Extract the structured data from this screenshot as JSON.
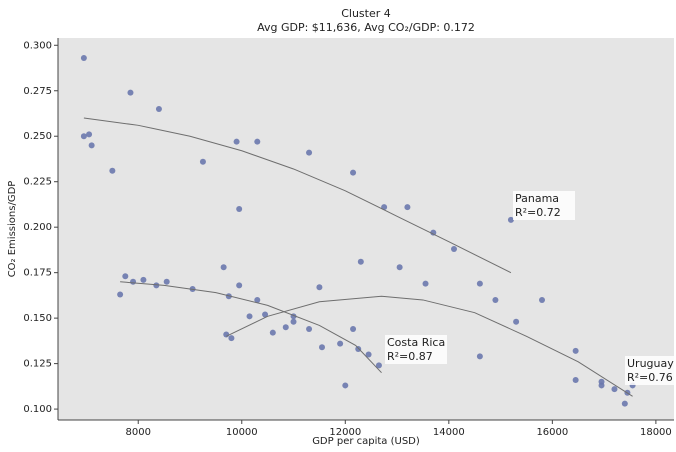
{
  "chart_data": {
    "type": "scatter",
    "title": "Cluster 4",
    "subtitle": "Avg GDP: $11,636, Avg CO₂/GDP: 0.172",
    "x_label": "GDP per capita (USD)",
    "y_label": "CO₂ Emissions/GDP",
    "xlim": [
      6450,
      18350
    ],
    "ylim": [
      0.094,
      0.304
    ],
    "xticks": [
      8000,
      10000,
      12000,
      14000,
      16000,
      18000
    ],
    "yticks": [
      {
        "value": 0.1,
        "label": "0.100"
      },
      {
        "value": 0.125,
        "label": "0.125"
      },
      {
        "value": 0.15,
        "label": "0.150"
      },
      {
        "value": 0.175,
        "label": "0.175"
      },
      {
        "value": 0.2,
        "label": "0.200"
      },
      {
        "value": 0.225,
        "label": "0.225"
      },
      {
        "value": 0.25,
        "label": "0.250"
      },
      {
        "value": 0.275,
        "label": "0.275"
      },
      {
        "value": 0.3,
        "label": "0.300"
      }
    ],
    "point_color": "#6a78ad",
    "line_color": "#6e6e6e",
    "background": "#e5e5e5",
    "points": {
      "x": [
        6950,
        6950,
        7050,
        7100,
        7500,
        7850,
        8400,
        9250,
        9900,
        10300,
        9950,
        11300,
        12150,
        12750,
        13200,
        13700,
        14100,
        15200,
        7650,
        7750,
        7900,
        8100,
        8350,
        8550,
        9050,
        9650,
        9750,
        9950,
        9700,
        9800,
        10150,
        10300,
        10450,
        10600,
        10850,
        11000,
        11000,
        11300,
        11500,
        11550,
        11900,
        12000,
        12150,
        12250,
        12300,
        12450,
        12650,
        13050,
        13550,
        14600,
        14600,
        14900,
        15300,
        15800,
        16450,
        16450,
        16950,
        16950,
        17200,
        17400,
        17450,
        17550
      ],
      "values": [
        0.293,
        0.25,
        0.251,
        0.245,
        0.231,
        0.274,
        0.265,
        0.236,
        0.247,
        0.247,
        0.21,
        0.241,
        0.23,
        0.211,
        0.211,
        0.197,
        0.188,
        0.204,
        0.163,
        0.173,
        0.17,
        0.171,
        0.168,
        0.17,
        0.166,
        0.178,
        0.162,
        0.168,
        0.141,
        0.139,
        0.151,
        0.16,
        0.152,
        0.142,
        0.145,
        0.151,
        0.148,
        0.144,
        0.167,
        0.134,
        0.136,
        0.113,
        0.144,
        0.133,
        0.181,
        0.13,
        0.124,
        0.178,
        0.169,
        0.169,
        0.129,
        0.16,
        0.148,
        0.16,
        0.132,
        0.116,
        0.113,
        0.115,
        0.111,
        0.103,
        0.109,
        0.113
      ]
    },
    "trend_lines": [
      {
        "name": "Panama",
        "r2": "R²=0.72",
        "x": [
          6950,
          8000,
          9000,
          10000,
          11000,
          12000,
          13000,
          14000,
          15200
        ],
        "values": [
          0.26,
          0.256,
          0.25,
          0.242,
          0.232,
          0.22,
          0.206,
          0.192,
          0.175
        ]
      },
      {
        "name": "Costa Rica",
        "r2": "R²=0.87",
        "x": [
          7650,
          8500,
          9500,
          10500,
          11500,
          12200,
          12700
        ],
        "values": [
          0.17,
          0.168,
          0.164,
          0.157,
          0.146,
          0.135,
          0.12
        ]
      },
      {
        "name": "Uruguay",
        "r2": "R²=0.76",
        "x": [
          9700,
          10500,
          11500,
          12700,
          13500,
          14500,
          15500,
          16500,
          17550
        ],
        "values": [
          0.14,
          0.151,
          0.159,
          0.162,
          0.16,
          0.153,
          0.14,
          0.126,
          0.107
        ]
      }
    ]
  }
}
